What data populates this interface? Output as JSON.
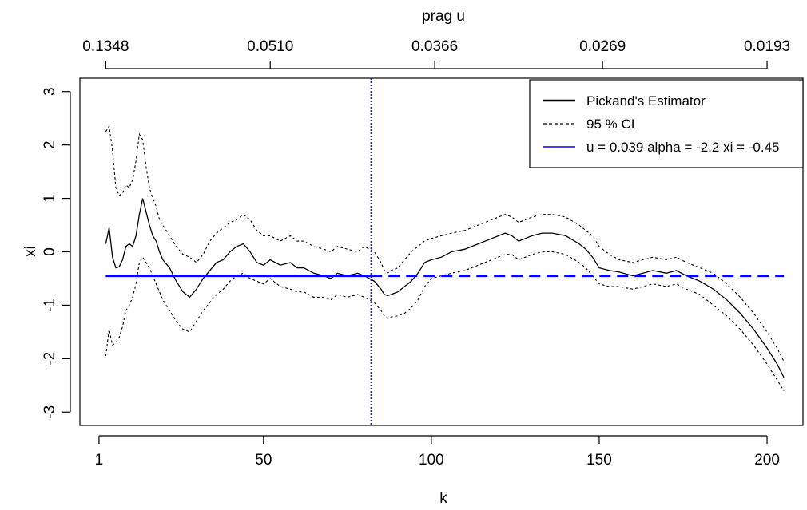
{
  "chart_data": {
    "type": "line",
    "title": "",
    "xlabel": "k",
    "ylabel": "xi",
    "top_axis_label": "prag u",
    "xlim": [
      1,
      205
    ],
    "ylim": [
      -3,
      3
    ],
    "x_ticks": [
      1,
      50,
      100,
      150,
      200
    ],
    "x_tick_labels": [
      "1",
      "50",
      "100",
      "150",
      "200"
    ],
    "y_ticks": [
      -3,
      -2,
      -1,
      0,
      1,
      2,
      3
    ],
    "y_tick_labels": [
      "-3",
      "-2",
      "-1",
      "0",
      "1",
      "2",
      "3"
    ],
    "top_ticks": [
      {
        "k": 3,
        "label": "0.1348"
      },
      {
        "k": 52,
        "label": "0.0510"
      },
      {
        "k": 101,
        "label": "0.0366"
      },
      {
        "k": 151,
        "label": "0.0269"
      },
      {
        "k": 200,
        "label": "0.0193"
      }
    ],
    "grid": false,
    "legend_position": "top-right",
    "legend": [
      {
        "label": "Pickand's Estimator",
        "style": "solid-thick",
        "color": "#000000"
      },
      {
        "label": "95 % CI",
        "style": "dashed",
        "color": "#000000"
      },
      {
        "label": "u = 0.039 alpha = -2.2 xi = -0.45",
        "style": "solid",
        "color": "#0000ff"
      }
    ],
    "series": [
      {
        "name": "Pickand's Estimator",
        "color": "#000000",
        "x": [
          3,
          4,
          5,
          6,
          7,
          8,
          9,
          10,
          11,
          12,
          13,
          14,
          15,
          16,
          17,
          18,
          19,
          20,
          22,
          24,
          26,
          28,
          30,
          32,
          34,
          36,
          38,
          40,
          42,
          44,
          46,
          48,
          50,
          52,
          55,
          58,
          60,
          62,
          65,
          68,
          70,
          72,
          75,
          78,
          80,
          83,
          85,
          86,
          87,
          88,
          90,
          92,
          94,
          96,
          98,
          100,
          103,
          106,
          110,
          114,
          118,
          122,
          124,
          126,
          128,
          130,
          133,
          136,
          140,
          144,
          146,
          148,
          150,
          153,
          156,
          160,
          163,
          166,
          170,
          173,
          176,
          180,
          184,
          188,
          192,
          196,
          200,
          203,
          205
        ],
        "y": [
          0.15,
          0.45,
          -0.1,
          -0.3,
          -0.28,
          -0.15,
          0.1,
          0.15,
          0.1,
          0.3,
          0.7,
          1.0,
          0.75,
          0.5,
          0.3,
          0.2,
          0.0,
          -0.15,
          -0.3,
          -0.55,
          -0.75,
          -0.85,
          -0.7,
          -0.5,
          -0.35,
          -0.2,
          -0.15,
          0.0,
          0.1,
          0.15,
          0.0,
          -0.2,
          -0.25,
          -0.15,
          -0.25,
          -0.2,
          -0.3,
          -0.3,
          -0.4,
          -0.45,
          -0.5,
          -0.4,
          -0.45,
          -0.4,
          -0.45,
          -0.55,
          -0.7,
          -0.8,
          -0.82,
          -0.8,
          -0.75,
          -0.65,
          -0.55,
          -0.4,
          -0.2,
          -0.15,
          -0.1,
          0.0,
          0.05,
          0.15,
          0.25,
          0.35,
          0.3,
          0.2,
          0.25,
          0.3,
          0.35,
          0.35,
          0.3,
          0.15,
          0.05,
          -0.1,
          -0.3,
          -0.35,
          -0.38,
          -0.45,
          -0.4,
          -0.35,
          -0.4,
          -0.35,
          -0.45,
          -0.55,
          -0.7,
          -0.9,
          -1.15,
          -1.45,
          -1.8,
          -2.1,
          -2.35
        ]
      },
      {
        "name": "95 % CI upper",
        "color": "#000000",
        "x": [
          3,
          4,
          5,
          6,
          7,
          8,
          9,
          10,
          11,
          12,
          13,
          14,
          15,
          16,
          17,
          18,
          19,
          20,
          22,
          24,
          26,
          28,
          30,
          32,
          34,
          36,
          38,
          40,
          42,
          44,
          46,
          48,
          50,
          52,
          55,
          58,
          60,
          62,
          65,
          68,
          70,
          72,
          75,
          78,
          80,
          83,
          85,
          86,
          87,
          88,
          90,
          92,
          94,
          96,
          98,
          100,
          103,
          106,
          110,
          114,
          118,
          122,
          124,
          126,
          128,
          130,
          133,
          136,
          140,
          144,
          146,
          148,
          150,
          153,
          156,
          160,
          163,
          166,
          170,
          173,
          176,
          180,
          184,
          188,
          192,
          196,
          200,
          203,
          205
        ],
        "y": [
          2.25,
          2.35,
          1.9,
          1.2,
          1.05,
          1.1,
          1.25,
          1.2,
          1.35,
          1.7,
          2.2,
          2.1,
          1.6,
          1.2,
          1.0,
          0.85,
          0.6,
          0.5,
          0.3,
          0.1,
          -0.05,
          -0.1,
          -0.2,
          -0.05,
          0.2,
          0.35,
          0.45,
          0.55,
          0.6,
          0.7,
          0.6,
          0.4,
          0.3,
          0.3,
          0.2,
          0.3,
          0.2,
          0.2,
          0.1,
          0.05,
          0.0,
          0.1,
          0.05,
          0.0,
          0.1,
          0.0,
          -0.2,
          -0.35,
          -0.4,
          -0.35,
          -0.3,
          -0.15,
          0.0,
          0.1,
          0.2,
          0.25,
          0.3,
          0.35,
          0.4,
          0.5,
          0.6,
          0.7,
          0.65,
          0.55,
          0.6,
          0.65,
          0.7,
          0.7,
          0.65,
          0.5,
          0.4,
          0.3,
          0.1,
          -0.05,
          -0.15,
          -0.2,
          -0.15,
          -0.1,
          -0.15,
          -0.1,
          -0.2,
          -0.3,
          -0.4,
          -0.6,
          -0.85,
          -1.15,
          -1.5,
          -1.8,
          -2.05
        ]
      },
      {
        "name": "95 % CI lower",
        "color": "#000000",
        "x": [
          3,
          4,
          5,
          6,
          7,
          8,
          9,
          10,
          11,
          12,
          13,
          14,
          15,
          16,
          17,
          18,
          19,
          20,
          22,
          24,
          26,
          28,
          30,
          32,
          34,
          36,
          38,
          40,
          42,
          44,
          46,
          48,
          50,
          52,
          55,
          58,
          60,
          62,
          65,
          68,
          70,
          72,
          75,
          78,
          80,
          83,
          85,
          86,
          87,
          88,
          90,
          92,
          94,
          96,
          98,
          100,
          103,
          106,
          110,
          114,
          118,
          122,
          124,
          126,
          128,
          130,
          133,
          136,
          140,
          144,
          146,
          148,
          150,
          153,
          156,
          160,
          163,
          166,
          170,
          173,
          176,
          180,
          184,
          188,
          192,
          196,
          200,
          203,
          205
        ],
        "y": [
          -1.95,
          -1.45,
          -1.75,
          -1.7,
          -1.6,
          -1.4,
          -1.1,
          -1.0,
          -0.85,
          -0.6,
          -0.2,
          -0.1,
          -0.2,
          -0.3,
          -0.45,
          -0.6,
          -0.75,
          -0.9,
          -1.1,
          -1.3,
          -1.45,
          -1.5,
          -1.3,
          -1.1,
          -0.95,
          -0.8,
          -0.7,
          -0.55,
          -0.45,
          -0.4,
          -0.5,
          -0.55,
          -0.6,
          -0.5,
          -0.65,
          -0.7,
          -0.75,
          -0.75,
          -0.85,
          -0.85,
          -0.9,
          -0.8,
          -0.85,
          -0.8,
          -0.85,
          -0.95,
          -1.1,
          -1.2,
          -1.25,
          -1.22,
          -1.2,
          -1.15,
          -1.05,
          -0.9,
          -0.65,
          -0.5,
          -0.45,
          -0.4,
          -0.35,
          -0.25,
          -0.15,
          -0.05,
          -0.05,
          -0.15,
          -0.1,
          -0.05,
          0.0,
          0.0,
          -0.05,
          -0.2,
          -0.3,
          -0.45,
          -0.6,
          -0.65,
          -0.65,
          -0.7,
          -0.65,
          -0.6,
          -0.65,
          -0.6,
          -0.7,
          -0.8,
          -1.0,
          -1.2,
          -1.45,
          -1.75,
          -2.1,
          -2.4,
          -2.6
        ]
      }
    ],
    "threshold": {
      "xi": -0.45,
      "k": 82,
      "color": "#0000ff"
    }
  }
}
